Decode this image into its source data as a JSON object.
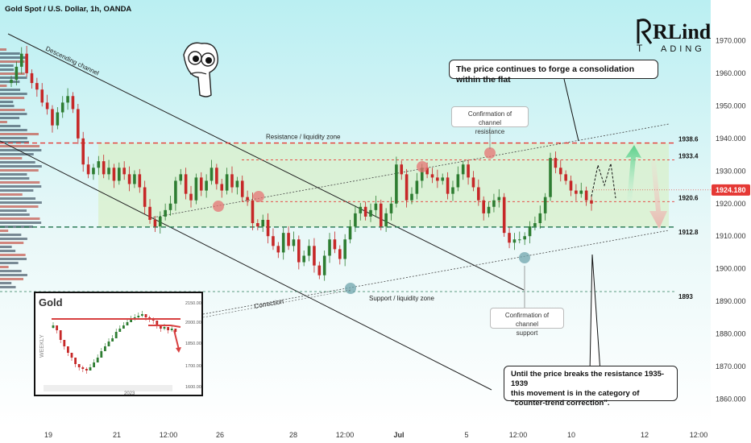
{
  "header": {
    "title": "Gold Spot / U.S. Dollar, 1h, OANDA"
  },
  "logo": {
    "top": "RLinda",
    "bottom_left": "T",
    "bottom_right": "ADING"
  },
  "colors": {
    "bg_top": "#bff0f2",
    "bg_bottom": "#f2fbfb",
    "zone": "#d8efc8",
    "up": "#2e7d32",
    "down": "#c62828",
    "red_dash": "#e53935",
    "green_dash": "#2e7d5a",
    "price_tag": "#e53935",
    "teal_circle": "#6fa4ac",
    "red_circle": "#e57373"
  },
  "current_price": "1924.180",
  "chart_data": {
    "type": "candlestick",
    "ylim": [
      1855,
      1978
    ],
    "y_ticks": [
      "1970.000",
      "1960.000",
      "1950.000",
      "1940.000",
      "1930.000",
      "1920.000",
      "1910.000",
      "1900.000",
      "1890.000",
      "1880.000",
      "1870.000",
      "1860.000"
    ],
    "x_ticks": [
      "19",
      "21",
      "12:00",
      "26",
      "28",
      "12:00",
      "Jul",
      "5",
      "12:00",
      "10",
      "12",
      "12:00"
    ],
    "levels": [
      {
        "value": 1938.6,
        "label": "1938.6",
        "style": "red"
      },
      {
        "value": 1933.4,
        "label": "1933.4",
        "style": "red"
      },
      {
        "value": 1920.6,
        "label": "1920.6",
        "style": "red"
      },
      {
        "value": 1912.8,
        "label": "1912.8",
        "style": "green"
      },
      {
        "value": 1893,
        "label": "1893",
        "style": "green"
      }
    ],
    "labels": {
      "resistance_zone": "Resistance / liquidity zone",
      "support_zone": "Support / liquidity zone",
      "descending_channel": "Descending channel",
      "correction": "Correction"
    },
    "series": [
      {
        "values": [
          1958,
          1962,
          1966,
          1960,
          1957,
          1955,
          1951,
          1949,
          1944,
          1948,
          1951,
          1953,
          1949,
          1940,
          1932,
          1929,
          1931,
          1933,
          1929,
          1931,
          1927,
          1931,
          1929,
          1926,
          1929,
          1925,
          1919,
          1915,
          1913,
          1916,
          1918,
          1920,
          1927,
          1929,
          1923,
          1921,
          1928,
          1924,
          1927,
          1931,
          1926,
          1924,
          1929,
          1925,
          1927,
          1922,
          1921,
          1914,
          1913,
          1915,
          1910,
          1907,
          1905,
          1911,
          1907,
          1909,
          1902,
          1904,
          1907,
          1901,
          1898,
          1904,
          1909,
          1906,
          1903,
          1909,
          1913,
          1917,
          1919,
          1916,
          1918,
          1920,
          1913,
          1917,
          1920,
          1932,
          1929,
          1921,
          1923,
          1927,
          1931,
          1929,
          1928,
          1927,
          1928,
          1923,
          1925,
          1929,
          1932,
          1928,
          1925,
          1921,
          1917,
          1919,
          1921,
          1922,
          1911,
          1908,
          1909,
          1909,
          1910,
          1913,
          1914,
          1917,
          1922,
          1934,
          1931,
          1929,
          1927,
          1924,
          1923,
          1924,
          1921,
          1920
        ]
      }
    ]
  },
  "callouts": {
    "top": "The price continues to forge a consolidation within the flat",
    "bottom_l1": "Until the price breaks the resistance 1935-1939",
    "bottom_l2": "this movement is in the category of",
    "bottom_l3": "\"counter-trend correction\"."
  },
  "notes": {
    "confirm_resistance_l1": "Confirmation of channel",
    "confirm_resistance_l2": "resistance",
    "confirm_support_l1": "Confirmation of channel",
    "confirm_support_l2": "support"
  },
  "inset": {
    "title": "Gold",
    "side_label": "WEEKLY",
    "year": "2023",
    "ticks": [
      "2150.00",
      "2000.00",
      "1850.00",
      "1700.00",
      "1600.00"
    ]
  }
}
